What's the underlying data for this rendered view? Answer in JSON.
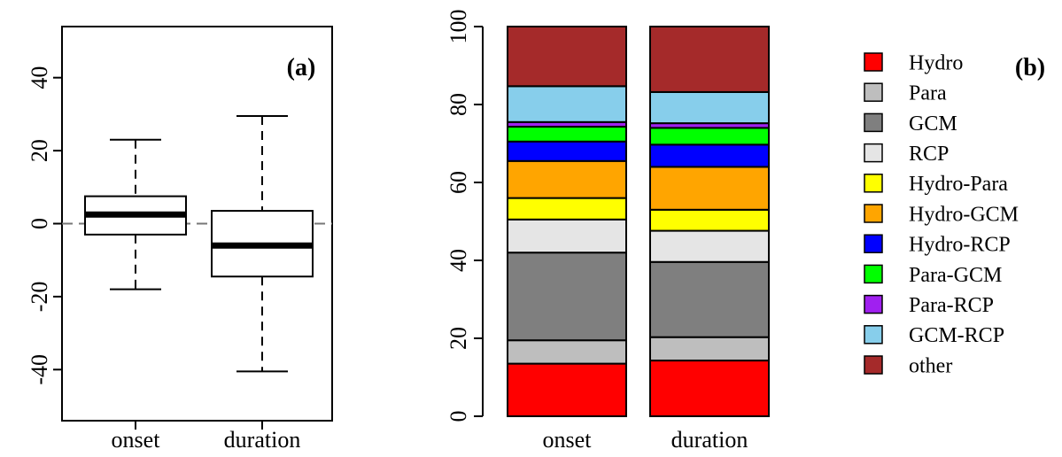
{
  "chart_data": [
    {
      "type": "box",
      "panel_label": "(a)",
      "categories": [
        "onset",
        "duration"
      ],
      "yticks": [
        -40,
        -20,
        0,
        20,
        40
      ],
      "ylim": [
        -54,
        54
      ],
      "reference_line": 0,
      "boxes": [
        {
          "category": "onset",
          "whisker_low": -18,
          "q1": -3,
          "median": 2.5,
          "q3": 7.5,
          "whisker_high": 23
        },
        {
          "category": "duration",
          "whisker_low": -40.5,
          "q1": -14.5,
          "median": -6,
          "q3": 3.5,
          "whisker_high": 29.5
        }
      ]
    },
    {
      "type": "stacked-bar",
      "panel_label": "(b)",
      "categories": [
        "onset",
        "duration"
      ],
      "yticks": [
        0,
        20,
        40,
        60,
        80,
        100
      ],
      "ylim": [
        0,
        100
      ],
      "legend_position": "right",
      "series": [
        {
          "name": "Hydro",
          "color": "#ff0000",
          "values": [
            13.5,
            14.3
          ]
        },
        {
          "name": "Para",
          "color": "#bebebe",
          "values": [
            6,
            6
          ]
        },
        {
          "name": "GCM",
          "color": "#7f7f7f",
          "values": [
            22.5,
            19.3
          ]
        },
        {
          "name": "RCP",
          "color": "#e5e5e5",
          "values": [
            8.5,
            8
          ]
        },
        {
          "name": "Hydro-Para",
          "color": "#ffff00",
          "values": [
            5.5,
            5.4
          ]
        },
        {
          "name": "Hydro-GCM",
          "color": "#ffa500",
          "values": [
            9.5,
            11
          ]
        },
        {
          "name": "Hydro-RCP",
          "color": "#0000ff",
          "values": [
            5,
            5.7
          ]
        },
        {
          "name": "Para-GCM",
          "color": "#00ff00",
          "values": [
            3.8,
            4.3
          ]
        },
        {
          "name": "Para-RCP",
          "color": "#a020f0",
          "values": [
            1.2,
            1.2
          ]
        },
        {
          "name": "GCM-RCP",
          "color": "#87ceeb",
          "values": [
            9.2,
            8
          ]
        },
        {
          "name": "other",
          "color": "#a52a2a",
          "values": [
            15.3,
            16.8
          ]
        }
      ]
    }
  ]
}
